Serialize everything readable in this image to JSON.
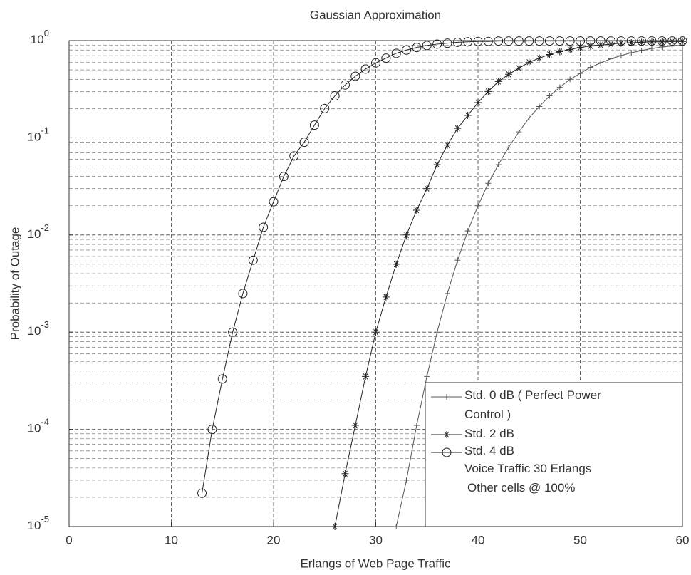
{
  "chart_data": {
    "type": "line",
    "title": "Gaussian Approximation",
    "x_label": "Erlangs of Web Page Traffic",
    "y_label": "Probability of Outage",
    "log_y": true,
    "grid": true,
    "minor_grid": true,
    "legend_position": "lower right",
    "xlim": [
      0,
      60
    ],
    "xticks": [
      0,
      10,
      20,
      30,
      40,
      50,
      60
    ],
    "ylim": [
      1e-05,
      1
    ],
    "yticks": [
      {
        "value": 1e-05,
        "label": "10",
        "exponent": "-5"
      },
      {
        "value": 0.0001,
        "label": "10",
        "exponent": "-4"
      },
      {
        "value": 0.001,
        "label": "10",
        "exponent": "-3"
      },
      {
        "value": 0.01,
        "label": "10",
        "exponent": "-2"
      },
      {
        "value": 0.1,
        "label": "10",
        "exponent": "-1"
      },
      {
        "value": 1,
        "label": "10",
        "exponent": "0"
      }
    ],
    "x": [
      12,
      13,
      14,
      15,
      16,
      17,
      18,
      19,
      20,
      21,
      22,
      23,
      24,
      25,
      26,
      27,
      28,
      29,
      30,
      31,
      32,
      33,
      34,
      35,
      36,
      37,
      38,
      39,
      40,
      41,
      42,
      43,
      44,
      45,
      46,
      47,
      48,
      49,
      50,
      51,
      52,
      53,
      54,
      55,
      56,
      57,
      58,
      59,
      60
    ],
    "series": [
      {
        "name": "Std. 0 dB ( Perfect Power Control )",
        "color": "#555555",
        "marker": "plus",
        "values": [
          null,
          null,
          null,
          null,
          null,
          null,
          null,
          null,
          null,
          null,
          null,
          null,
          null,
          null,
          null,
          null,
          null,
          null,
          null,
          null,
          1e-05,
          3e-05,
          0.00011,
          0.00035,
          0.001,
          0.0025,
          0.0055,
          0.011,
          0.02,
          0.034,
          0.053,
          0.08,
          0.115,
          0.16,
          0.21,
          0.27,
          0.33,
          0.4,
          0.46,
          0.53,
          0.59,
          0.65,
          0.7,
          0.75,
          0.79,
          0.83,
          0.86,
          0.88,
          0.9
        ]
      },
      {
        "name": "Std. 2 dB",
        "color": "#222222",
        "marker": "star",
        "values": [
          null,
          null,
          null,
          null,
          null,
          null,
          null,
          null,
          null,
          null,
          null,
          null,
          null,
          null,
          1e-05,
          3.5e-05,
          0.00011,
          0.00035,
          0.001,
          0.0023,
          0.005,
          0.01,
          0.018,
          0.03,
          0.053,
          0.084,
          0.125,
          0.17,
          0.23,
          0.3,
          0.38,
          0.45,
          0.52,
          0.6,
          0.66,
          0.72,
          0.77,
          0.81,
          0.85,
          0.88,
          0.9,
          0.92,
          0.94,
          0.95,
          0.96,
          0.97,
          0.97,
          0.98,
          0.98
        ]
      },
      {
        "name": "Std. 4 dB",
        "color": "#222222",
        "marker": "circle",
        "values": [
          null,
          2.2e-05,
          0.0001,
          0.00033,
          0.001,
          0.0025,
          0.0055,
          0.012,
          0.022,
          0.04,
          0.065,
          0.09,
          0.135,
          0.2,
          0.27,
          0.35,
          0.43,
          0.51,
          0.59,
          0.66,
          0.74,
          0.8,
          0.85,
          0.89,
          0.92,
          0.94,
          0.96,
          0.97,
          0.98,
          0.98,
          0.99,
          0.99,
          0.99,
          0.99,
          0.99,
          0.99,
          0.99,
          0.99,
          0.99,
          0.99,
          0.99,
          0.99,
          0.99,
          0.99,
          0.99,
          0.99,
          0.99,
          0.99,
          0.99
        ]
      }
    ],
    "annotations": [
      "Voice Traffic 30 Erlangs",
      "Other cells @ 100%"
    ]
  }
}
